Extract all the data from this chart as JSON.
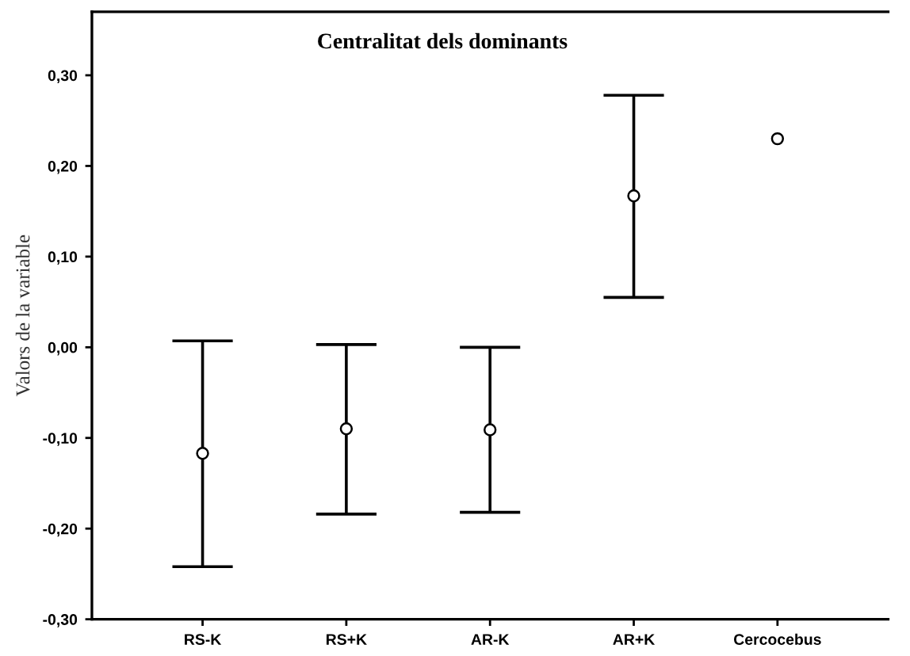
{
  "chart_data": {
    "type": "scatter",
    "title": "Centralitat dels dominants",
    "ylabel": "Valors de la variable",
    "categories": [
      "RS-K",
      "RS+K",
      "AR-K",
      "AR+K",
      "Cercocebus"
    ],
    "values": [
      -0.117,
      -0.09,
      -0.091,
      0.167,
      0.23
    ],
    "errors": [
      [
        -0.242,
        0.007
      ],
      [
        -0.184,
        0.003
      ],
      [
        -0.182,
        0.0
      ],
      [
        0.055,
        0.278
      ],
      null
    ],
    "color": "#000000",
    "marker": "circle",
    "grid": false,
    "legend": false,
    "ylim": [
      -0.3,
      0.37
    ],
    "yticks": [
      {
        "value": -0.3,
        "label": "-0,30"
      },
      {
        "value": -0.2,
        "label": "-0,20"
      },
      {
        "value": -0.1,
        "label": "-0,10"
      },
      {
        "value": 0.0,
        "label": "0,00"
      },
      {
        "value": 0.1,
        "label": "0,10"
      },
      {
        "value": 0.2,
        "label": "0,20"
      },
      {
        "value": 0.3,
        "label": "0,30"
      }
    ]
  }
}
